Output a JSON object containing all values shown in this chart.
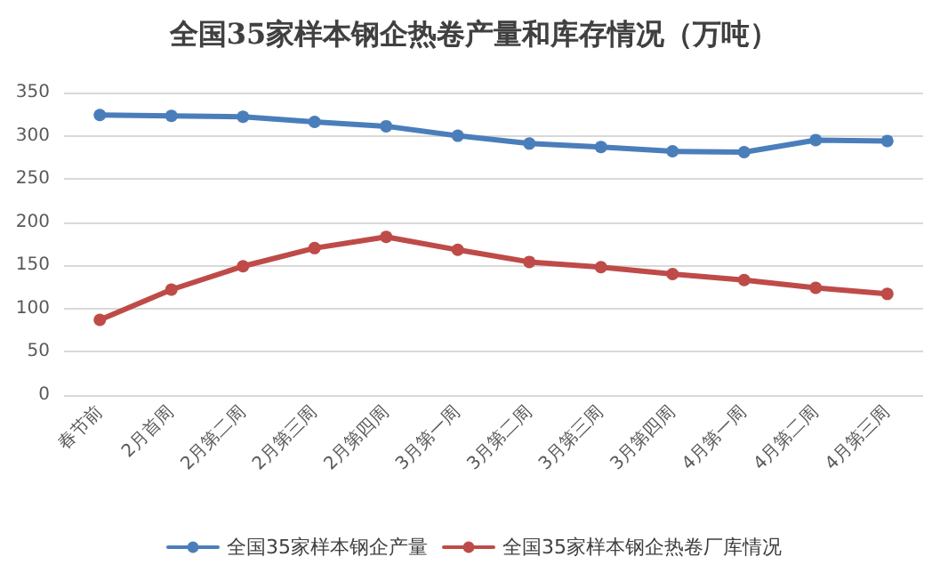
{
  "chart_data": {
    "type": "line",
    "title": "全国35家样本钢企热卷产量和库存情况（万吨）",
    "categories": [
      "春节前",
      "2月首周",
      "2月第二周",
      "2月第三周",
      "2月第四周",
      "3月第一周",
      "3月第二周",
      "3月第三周",
      "3月第四周",
      "4月第一周",
      "4月第二周",
      "4月第三周"
    ],
    "series": [
      {
        "name": "全国35家样本钢企产量",
        "color": "#4a7ebb",
        "values": [
          324,
          323,
          322,
          316,
          311,
          300,
          291,
          287,
          282,
          281,
          295,
          294
        ]
      },
      {
        "name": "全国35家样本钢企热卷厂库情况",
        "color": "#be4b48",
        "values": [
          87,
          122,
          149,
          170,
          183,
          168,
          154,
          148,
          140,
          133,
          124,
          117
        ]
      }
    ],
    "ylim": [
      0,
      350
    ],
    "yticks": [
      0,
      50,
      100,
      150,
      200,
      250,
      300,
      350
    ],
    "grid": "y",
    "legend": "bottom",
    "marker": "circle",
    "line_style": "solid"
  }
}
